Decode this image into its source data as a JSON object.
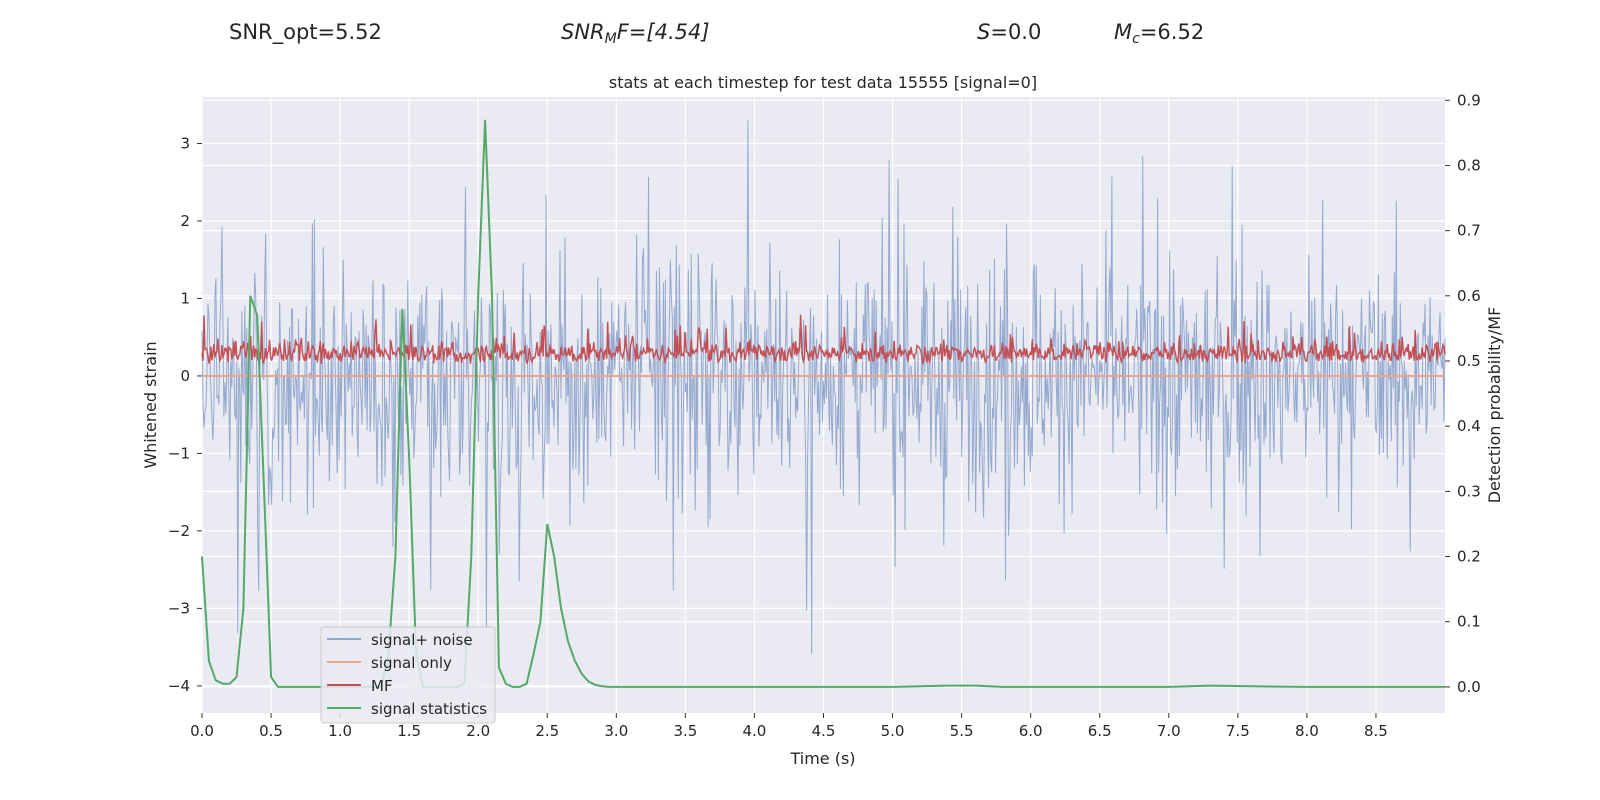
{
  "header": {
    "snr_opt": "SNR_opt=5.52",
    "snr_mf_name": "SNR",
    "snr_mf_sub": "M",
    "snr_mf_rest": "F=[4.54]",
    "s_name": "S",
    "s_value": "=0.0",
    "mc_name": "M",
    "mc_sub": "c",
    "mc_value": "=6.52"
  },
  "colors": {
    "background": "#eaeaf2",
    "grid": "#ffffff",
    "noise": "#8fa5cc",
    "signal_only": "#e8a58a",
    "mf": "#c44e52",
    "signal_statistics": "#55a868"
  },
  "chart_data": {
    "type": "line",
    "title": "stats at each timestep for test data 15555 [signal=0]",
    "xlabel": "Time (s)",
    "ylabel": "Whitened strain",
    "ylabel_right": "Detection probability/MF",
    "xlim": [
      0.0,
      9.0
    ],
    "ylim": [
      -4.35,
      3.6
    ],
    "ylim_right": [
      -0.04,
      0.905
    ],
    "xticks": [
      0.0,
      0.5,
      1.0,
      1.5,
      2.0,
      2.5,
      3.0,
      3.5,
      4.0,
      4.5,
      5.0,
      5.5,
      6.0,
      6.5,
      7.0,
      7.5,
      8.0,
      8.5
    ],
    "xtick_labels": [
      "0.0",
      "0.5",
      "1.0",
      "1.5",
      "2.0",
      "2.5",
      "3.0",
      "3.5",
      "4.0",
      "4.5",
      "5.0",
      "5.5",
      "6.0",
      "6.5",
      "7.0",
      "7.5",
      "8.0",
      "8.5"
    ],
    "yticks": [
      3,
      2,
      1,
      0,
      -1,
      -2,
      -3,
      -4
    ],
    "ytick_labels": [
      "3",
      "2",
      "1",
      "0",
      "−1",
      "−2",
      "−3",
      "−4"
    ],
    "yticks_right": [
      0.9,
      0.8,
      0.7,
      0.6,
      0.5,
      0.4,
      0.3,
      0.2,
      0.1,
      0.0
    ],
    "ytick_labels_right": [
      "0.9",
      "0.8",
      "0.7",
      "0.6",
      "0.5",
      "0.4",
      "0.3",
      "0.2",
      "0.1",
      "0.0"
    ],
    "legend_position": "lower-left",
    "series": [
      {
        "name": "signal+ noise",
        "axis": "left",
        "kind": "dense_noise",
        "approx_range": [
          -4.0,
          3.3
        ],
        "color": "#8fa5cc"
      },
      {
        "name": "signal only",
        "axis": "left",
        "kind": "line",
        "x": [
          0.0,
          9.0
        ],
        "y": [
          0.0,
          0.0
        ],
        "color": "#e8a58a"
      },
      {
        "name": "MF",
        "axis": "left",
        "kind": "dense_noise",
        "approx_range": [
          -0.02,
          1.0
        ],
        "color": "#c44e52"
      },
      {
        "name": "signal statistics",
        "axis": "right",
        "kind": "line",
        "x": [
          0.0,
          0.05,
          0.1,
          0.15,
          0.2,
          0.25,
          0.3,
          0.35,
          0.4,
          0.45,
          0.5,
          0.55,
          0.6,
          0.65,
          0.7,
          0.75,
          0.8,
          0.85,
          0.9,
          0.95,
          1.0,
          1.05,
          1.1,
          1.15,
          1.2,
          1.25,
          1.3,
          1.35,
          1.4,
          1.45,
          1.5,
          1.55,
          1.6,
          1.65,
          1.7,
          1.75,
          1.8,
          1.85,
          1.9,
          1.95,
          2.0,
          2.05,
          2.1,
          2.15,
          2.2,
          2.25,
          2.3,
          2.35,
          2.4,
          2.45,
          2.5,
          2.55,
          2.6,
          2.65,
          2.7,
          2.75,
          2.8,
          2.85,
          2.9,
          2.95,
          3.0,
          3.5,
          4.0,
          4.5,
          5.0,
          5.4,
          5.6,
          5.8,
          6.5,
          7.0,
          7.3,
          7.6,
          8.0,
          8.5,
          9.0
        ],
        "y": [
          0.2,
          0.04,
          0.01,
          0.005,
          0.005,
          0.015,
          0.12,
          0.6,
          0.57,
          0.3,
          0.015,
          0.0,
          0.0,
          0.0,
          0.0,
          0.0,
          0.0,
          0.0,
          0.0,
          0.0,
          0.0,
          0.0,
          0.0,
          0.0,
          0.0,
          0.0,
          0.0,
          0.05,
          0.2,
          0.58,
          0.35,
          0.05,
          0.0,
          0.0,
          0.0,
          0.0,
          0.0,
          0.0,
          0.005,
          0.2,
          0.6,
          0.87,
          0.6,
          0.03,
          0.005,
          0.0,
          0.0,
          0.005,
          0.05,
          0.1,
          0.25,
          0.2,
          0.12,
          0.07,
          0.04,
          0.02,
          0.008,
          0.003,
          0.001,
          0.0,
          0.0,
          0.0,
          0.0,
          0.0,
          0.0,
          0.002,
          0.002,
          0.0,
          0.0,
          0.0,
          0.002,
          0.001,
          0.0,
          0.0,
          0.0
        ],
        "color": "#55a868"
      }
    ]
  }
}
